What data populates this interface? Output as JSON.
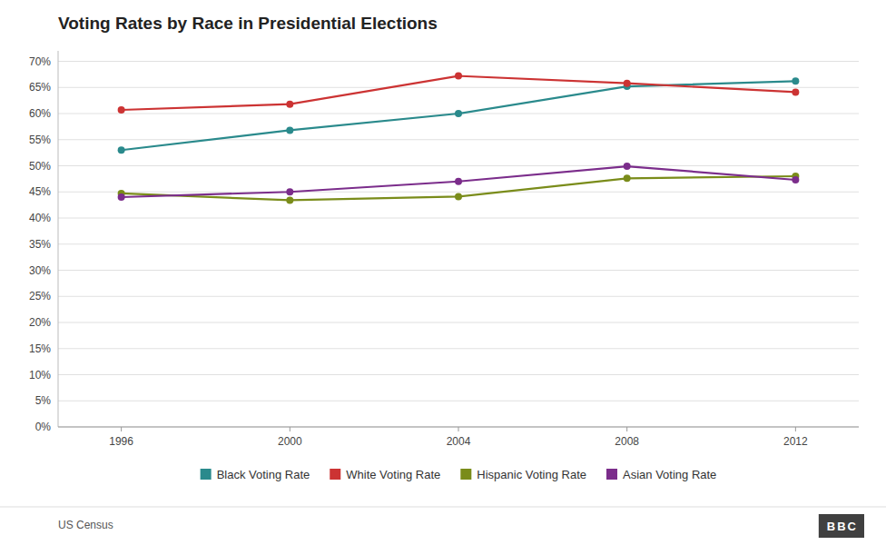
{
  "chart_data": {
    "type": "line",
    "title": "Voting Rates by Race in Presidential Elections",
    "x": [
      1996,
      2000,
      2004,
      2008,
      2012
    ],
    "series": [
      {
        "name": "Black Voting Rate",
        "color": "#2a8a8c",
        "marker": "circle",
        "values": [
          53.0,
          56.8,
          60.0,
          65.2,
          66.2
        ]
      },
      {
        "name": "White Voting Rate",
        "color": "#cc3333",
        "marker": "circle",
        "values": [
          60.7,
          61.8,
          67.2,
          65.8,
          64.1
        ]
      },
      {
        "name": "Hispanic Voting Rate",
        "color": "#7a8c1a",
        "marker": "circle",
        "values": [
          44.7,
          43.4,
          44.1,
          47.6,
          48.0
        ]
      },
      {
        "name": "Asian Voting Rate",
        "color": "#7b2d8b",
        "marker": "circle",
        "values": [
          44.0,
          45.0,
          47.0,
          49.9,
          47.3
        ]
      }
    ],
    "xlim": [
      1994.5,
      2013.5
    ],
    "xticks": [
      1996,
      2000,
      2004,
      2008,
      2012
    ],
    "ylim": [
      0,
      72
    ],
    "yticks": [
      {
        "value": 0,
        "label": "0%"
      },
      {
        "value": 5,
        "label": "5%"
      },
      {
        "value": 10,
        "label": "10%"
      },
      {
        "value": 15,
        "label": "15%"
      },
      {
        "value": 20,
        "label": "20%"
      },
      {
        "value": 25,
        "label": "25%"
      },
      {
        "value": 30,
        "label": "30%"
      },
      {
        "value": 35,
        "label": "35%"
      },
      {
        "value": 40,
        "label": "40%"
      },
      {
        "value": 45,
        "label": "45%"
      },
      {
        "value": 50,
        "label": "50%"
      },
      {
        "value": 55,
        "label": "55%"
      },
      {
        "value": 60,
        "label": "60%"
      },
      {
        "value": 65,
        "label": "65%"
      },
      {
        "value": 70,
        "label": "70%"
      }
    ],
    "grid": true,
    "legend": "bottom",
    "annotations": [
      "US Census",
      "BBC"
    ]
  }
}
